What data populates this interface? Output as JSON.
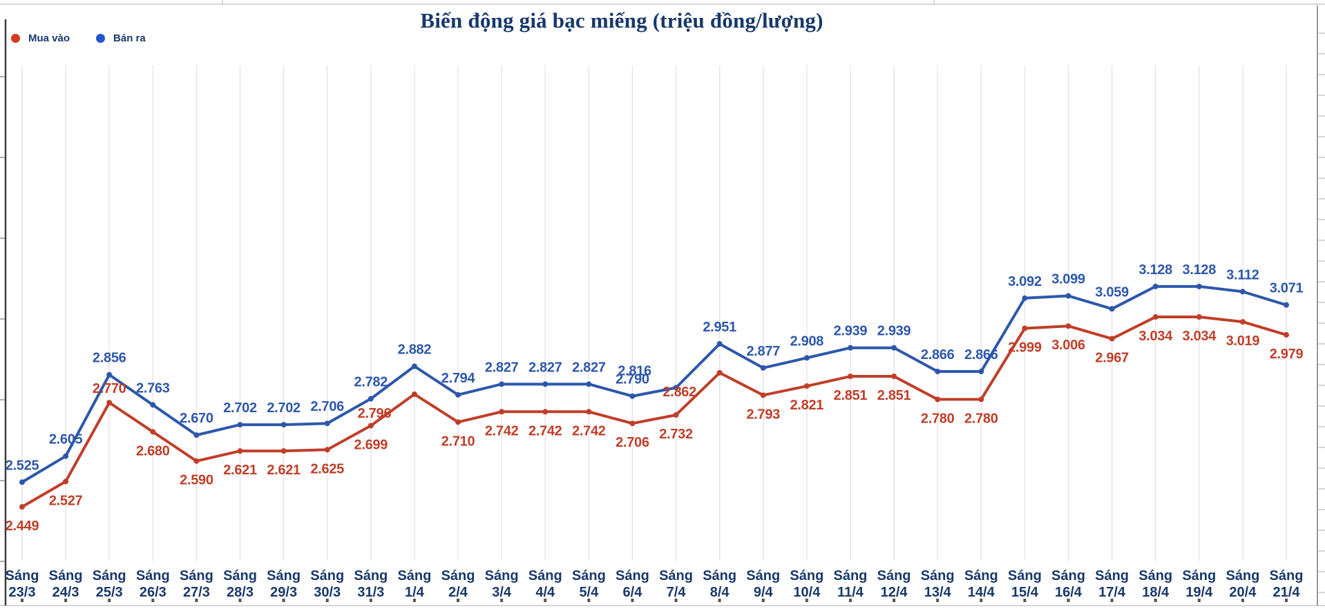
{
  "title": "Biến động giá bạc miếng (triệu đồng/lượng)",
  "legend": {
    "items": [
      {
        "label": "Mua vào",
        "color": "#d23a22"
      },
      {
        "label": "Bán ra",
        "color": "#2355d4"
      }
    ]
  },
  "colors": {
    "mua_vao": "#c03e29",
    "ban_ra": "#2d57ab",
    "title": "#17386b",
    "axis_label": "#17386b",
    "grid": "#e6e6e6",
    "edge_light": "#c9c9c9",
    "edge_dark": "#3d3d3d",
    "edge_mid": "#9a9a9a",
    "tick": "#555555"
  },
  "chart_data": {
    "type": "line",
    "title": "Biến động giá bạc miếng (triệu đồng/lượng)",
    "unit": "triệu đồng/lượng",
    "categories": [
      "Sáng 23/3",
      "Sáng 24/3",
      "Sáng 25/3",
      "Sáng 26/3",
      "Sáng 27/3",
      "Sáng 28/3",
      "Sáng 29/3",
      "Sáng 30/3",
      "Sáng 31/3",
      "Sáng 1/4",
      "Sáng 2/4",
      "Sáng 3/4",
      "Sáng 4/4",
      "Sáng 5/4",
      "Sáng 6/4",
      "Sáng 7/4",
      "Sáng 8/4",
      "Sáng 9/4",
      "Sáng 10/4",
      "Sáng 11/4",
      "Sáng 12/4",
      "Sáng 13/4",
      "Sáng 14/4",
      "Sáng 15/4",
      "Sáng 16/4",
      "Sáng 17/4",
      "Sáng 18/4",
      "Sáng 19/4",
      "Sáng 20/4",
      "Sáng 21/4"
    ],
    "series": [
      {
        "name": "Mua vào",
        "color": "#c03e29",
        "values": [
          2.449,
          2.527,
          2.77,
          2.68,
          2.59,
          2.621,
          2.621,
          2.625,
          2.699,
          2.796,
          2.71,
          2.742,
          2.742,
          2.742,
          2.706,
          2.732,
          2.862,
          2.793,
          2.821,
          2.851,
          2.851,
          2.78,
          2.78,
          2.999,
          3.006,
          2.967,
          3.034,
          3.034,
          3.019,
          2.979
        ]
      },
      {
        "name": "Bán ra",
        "color": "#2d57ab",
        "values": [
          2.525,
          2.605,
          2.856,
          2.763,
          2.67,
          2.702,
          2.702,
          2.706,
          2.782,
          2.882,
          2.794,
          2.827,
          2.827,
          2.827,
          2.79,
          2.816,
          2.951,
          2.877,
          2.908,
          2.939,
          2.939,
          2.866,
          2.866,
          3.092,
          3.099,
          3.059,
          3.128,
          3.128,
          3.112,
          3.071
        ]
      }
    ],
    "ylim": [
      2.4,
      3.2
    ],
    "grid": "vertical-faint",
    "legend_position": "top-left",
    "value_labels": true,
    "label_format": "3-decimals"
  }
}
